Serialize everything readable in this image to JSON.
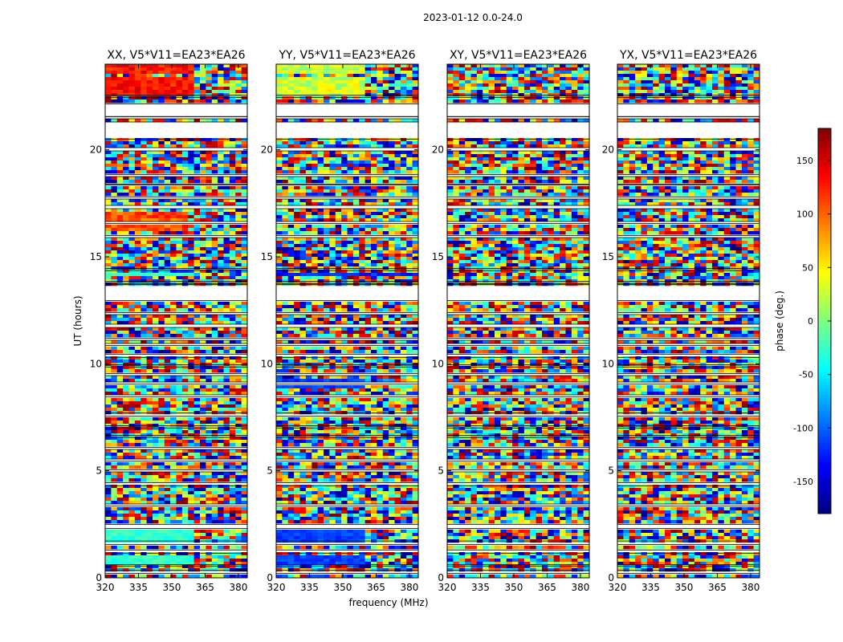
{
  "figure": {
    "suptitle": "2023-01-12 0.0-24.0",
    "xlabel": "frequency (MHz)",
    "ylabel": "UT (hours)"
  },
  "chart_data": {
    "type": "heatmap",
    "x_range": [
      320,
      384
    ],
    "y_range": [
      0,
      24
    ],
    "xticks": [
      320,
      335,
      350,
      365,
      380
    ],
    "yticks": [
      0,
      5,
      10,
      15,
      20
    ],
    "panels": [
      {
        "title": "XX, V5*V11=EA23*EA26",
        "pattern": "coherent_xx"
      },
      {
        "title": "YY, V5*V11=EA23*EA26",
        "pattern": "coherent_yy"
      },
      {
        "title": "XY, V5*V11=EA23*EA26",
        "pattern": "noise"
      },
      {
        "title": "YX, V5*V11=EA23*EA26",
        "pattern": "noise"
      }
    ],
    "data_gaps_hours": [
      [
        0.2,
        0.35
      ],
      [
        0.55,
        0.62
      ],
      [
        1.15,
        1.3
      ],
      [
        1.55,
        1.72
      ],
      [
        2.3,
        2.5
      ],
      [
        3.35,
        3.45
      ],
      [
        4.3,
        4.45
      ],
      [
        4.95,
        5.05
      ],
      [
        5.45,
        5.55
      ],
      [
        6.0,
        6.1
      ],
      [
        6.55,
        6.65
      ],
      [
        7.0,
        7.1
      ],
      [
        7.55,
        7.7
      ],
      [
        8.45,
        8.55
      ],
      [
        9.05,
        9.15
      ],
      [
        9.45,
        9.55
      ],
      [
        9.85,
        9.95
      ],
      [
        10.3,
        10.45
      ],
      [
        10.85,
        10.95
      ],
      [
        11.1,
        11.2
      ],
      [
        11.7,
        11.85
      ],
      [
        12.3,
        12.4
      ],
      [
        12.95,
        13.7
      ],
      [
        13.75,
        13.85
      ],
      [
        14.35,
        14.45
      ],
      [
        15.9,
        16.0
      ],
      [
        16.55,
        16.65
      ],
      [
        17.25,
        17.4
      ],
      [
        17.7,
        17.8
      ],
      [
        18.35,
        18.4
      ],
      [
        18.75,
        18.85
      ],
      [
        19.95,
        20.1
      ],
      [
        20.5,
        21.3
      ],
      [
        21.45,
        21.55
      ],
      [
        21.55,
        22.15
      ],
      [
        22.45,
        22.55
      ]
    ],
    "colorbar": {
      "label": "phase (deg.)",
      "range": [
        -180,
        180
      ],
      "ticks": [
        -150,
        -100,
        -50,
        0,
        50,
        100,
        150
      ],
      "colormap": "jet"
    }
  }
}
